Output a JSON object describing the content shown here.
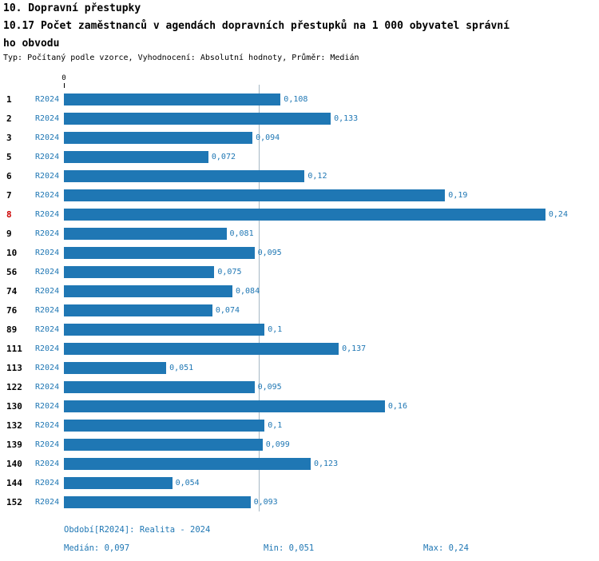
{
  "header": {
    "title": "10. Dopravní přestupky",
    "subtitle_line1": "10.17 Počet zaměstnanců v agendách dopravních přestupků na 1 000 obyvatel správní",
    "subtitle_line2": "ho obvodu",
    "meta": "Typ: Počítaný podle vzorce, Vyhodnocení: Absolutní hodnoty, Průměr: Medián"
  },
  "chart_data": {
    "type": "bar",
    "orientation": "horizontal",
    "title": "10.17 Počet zaměstnanců v agendách dopravních přestupků na 1 000 obyvatel správního obvodu",
    "series_label": "R2024",
    "axis_zero_label": "0",
    "categories": [
      "1",
      "2",
      "3",
      "5",
      "6",
      "7",
      "8",
      "9",
      "10",
      "56",
      "74",
      "76",
      "89",
      "111",
      "113",
      "122",
      "130",
      "132",
      "139",
      "140",
      "144",
      "152"
    ],
    "values": [
      0.108,
      0.133,
      0.094,
      0.072,
      0.12,
      0.19,
      0.24,
      0.081,
      0.095,
      0.075,
      0.084,
      0.074,
      0.1,
      0.137,
      0.051,
      0.095,
      0.16,
      0.1,
      0.099,
      0.123,
      0.054,
      0.093
    ],
    "value_labels": [
      "0,108",
      "0,133",
      "0,094",
      "0,072",
      "0,12",
      "0,19",
      "0,24",
      "0,081",
      "0,095",
      "0,075",
      "0,084",
      "0,074",
      "0,1",
      "0,137",
      "0,051",
      "0,095",
      "0,16",
      "0,1",
      "0,099",
      "0,123",
      "0,054",
      "0,093"
    ],
    "highlighted_category": "8",
    "median": 0.097,
    "xlim": [
      0,
      0.26
    ],
    "grid": false,
    "legend_position": "none",
    "bar_color": "#1f77b4",
    "label_color": "#1f77b4",
    "highlight_color": "#cc0000",
    "median_line_color": "#a6b8c4"
  },
  "footer": {
    "period": "Období[R2024]: Realita - 2024",
    "median": "Medián: 0,097",
    "min": "Min: 0,051",
    "max": "Max: 0,24"
  }
}
